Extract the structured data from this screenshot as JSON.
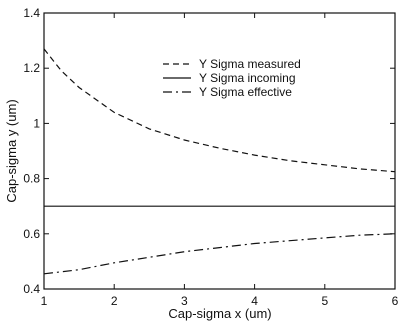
{
  "chart_data": {
    "type": "line",
    "xlabel": "Cap-sigma x (um)",
    "ylabel": "Cap-sigma y (um)",
    "xlim": [
      1,
      6
    ],
    "ylim": [
      0.4,
      1.4
    ],
    "xticks": [
      "1",
      "2",
      "3",
      "4",
      "5",
      "6"
    ],
    "yticks": [
      "0.4",
      "0.6",
      "0.8",
      "1",
      "1.2",
      "1.4"
    ],
    "grid": false,
    "legend_position": "top-right",
    "series": [
      {
        "name": "Y Sigma measured",
        "style": "dashed",
        "x": [
          1,
          1.25,
          1.5,
          2,
          2.5,
          3,
          3.5,
          4,
          4.5,
          5,
          5.5,
          6
        ],
        "y": [
          1.27,
          1.19,
          1.13,
          1.04,
          0.98,
          0.94,
          0.91,
          0.885,
          0.865,
          0.85,
          0.835,
          0.825
        ]
      },
      {
        "name": "Y Sigma incoming",
        "style": "solid",
        "x": [
          1,
          6
        ],
        "y": [
          0.7,
          0.7
        ]
      },
      {
        "name": "Y Sigma effective",
        "style": "dashdot",
        "x": [
          1,
          1.5,
          2,
          2.5,
          3,
          3.5,
          4,
          4.5,
          5,
          5.5,
          6
        ],
        "y": [
          0.455,
          0.47,
          0.495,
          0.515,
          0.535,
          0.55,
          0.565,
          0.575,
          0.585,
          0.595,
          0.6
        ]
      }
    ]
  }
}
